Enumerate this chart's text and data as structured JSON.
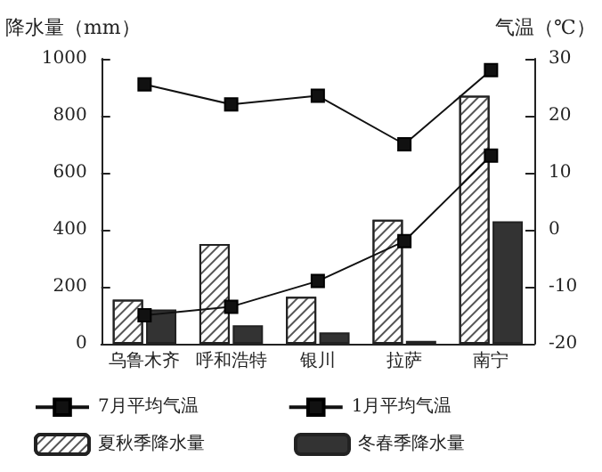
{
  "chart_data": {
    "type": "bar",
    "categories": [
      "乌鲁木齐",
      "呼和浩特",
      "银川",
      "拉萨",
      "南宁"
    ],
    "ylabel": "降水量（mm）",
    "y2label": "气温（℃）",
    "ylim": [
      0,
      1000
    ],
    "yticks": [
      0,
      200,
      400,
      600,
      800,
      {
        "value": 1000,
        "label": "1000"
      }
    ],
    "y2lim": [
      -20,
      30
    ],
    "y2ticks": [
      -20,
      -10,
      0,
      10,
      20,
      30
    ],
    "grid": false,
    "legend": "bottom",
    "marker": "square",
    "series": [
      {
        "name": "7月平均气温",
        "type": "line",
        "axis": "y2",
        "color": "#111111",
        "values": [
          25.5,
          22,
          23.5,
          15,
          28
        ]
      },
      {
        "name": "1月平均气温",
        "type": "line",
        "axis": "y2",
        "color": "#111111",
        "values": [
          -15,
          -13.5,
          -9,
          -2,
          13
        ]
      },
      {
        "name": "夏秋季降水量",
        "color": "#ffffff",
        "values": [
          155,
          350,
          165,
          435,
          870
        ]
      },
      {
        "name": "冬春季降水量",
        "color": "#333333",
        "values": [
          120,
          65,
          40,
          10,
          430
        ]
      }
    ]
  }
}
